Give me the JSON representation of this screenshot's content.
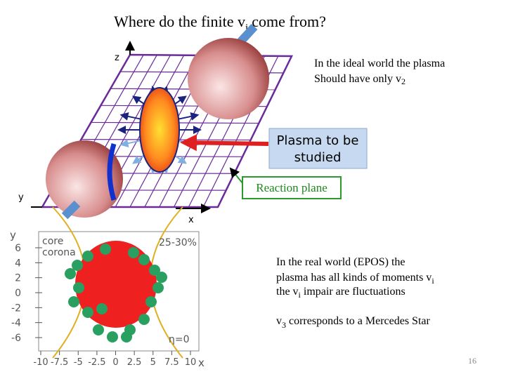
{
  "title": {
    "text": "Where do the finite v",
    "sub": "i",
    "rest": "come from?"
  },
  "diagram": {
    "z_label": "z",
    "y_label": "y",
    "x_label": "x",
    "callout": [
      "Plasma to be",
      "studied"
    ],
    "reaction_plane": "Reaction plane"
  },
  "ideal": {
    "line1": "In the ideal world the plasma",
    "line2": "Should have only v",
    "sub": "2"
  },
  "figure": {
    "y_label": "y",
    "x_label": "x",
    "yticks": [
      6,
      4,
      2,
      0,
      -2,
      -4,
      -6
    ],
    "xticks": [
      -10,
      -7.5,
      -5,
      -2.5,
      0,
      2.5,
      5,
      7.5,
      10
    ],
    "legend": [
      "core",
      "corona"
    ],
    "centrality": "25-30%",
    "eta": "η=0"
  },
  "real": {
    "line1": "In the real world (EPOS)  the",
    "line2": "plasma has all kinds of moments v",
    "line2_sub": "i",
    "line3a": "the v",
    "line3_sub": "i",
    "line3b": " impair are fluctuations"
  },
  "mercedes": {
    "a": "v",
    "sub": "3",
    "b": " corresponds to a Mercedes Star"
  },
  "page_number": "16"
}
